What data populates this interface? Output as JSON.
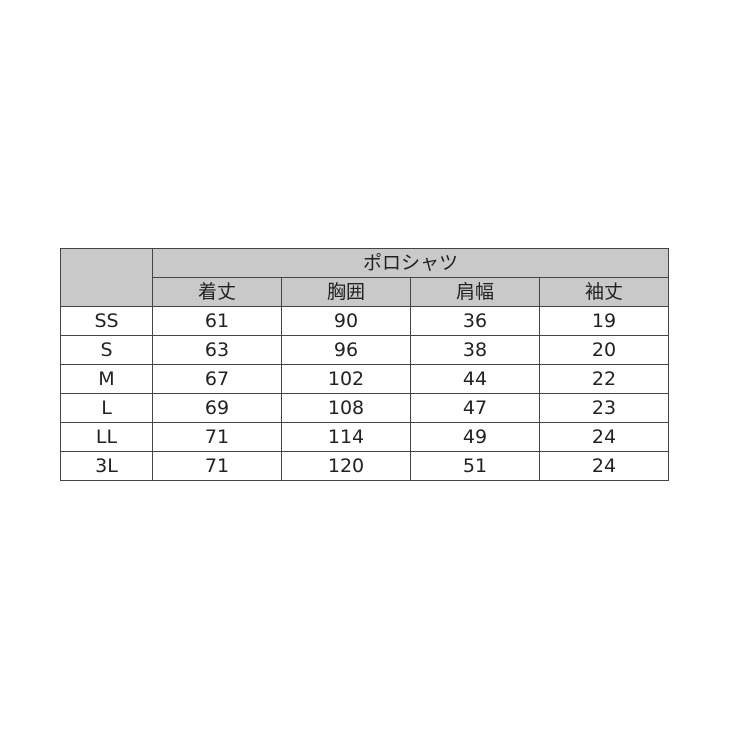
{
  "table": {
    "group_header": "ポロシャツ",
    "columns": [
      "着丈",
      "胸囲",
      "肩幅",
      "袖丈"
    ],
    "rows": [
      {
        "size": "SS",
        "values": [
          "61",
          "90",
          "36",
          "19"
        ]
      },
      {
        "size": "S",
        "values": [
          "63",
          "96",
          "38",
          "20"
        ]
      },
      {
        "size": "M",
        "values": [
          "67",
          "102",
          "44",
          "22"
        ]
      },
      {
        "size": "L",
        "values": [
          "69",
          "108",
          "47",
          "23"
        ]
      },
      {
        "size": "LL",
        "values": [
          "71",
          "114",
          "49",
          "24"
        ]
      },
      {
        "size": "3L",
        "values": [
          "71",
          "120",
          "51",
          "24"
        ]
      }
    ],
    "header_color": "#c9c9c9",
    "border_color": "#444444"
  }
}
